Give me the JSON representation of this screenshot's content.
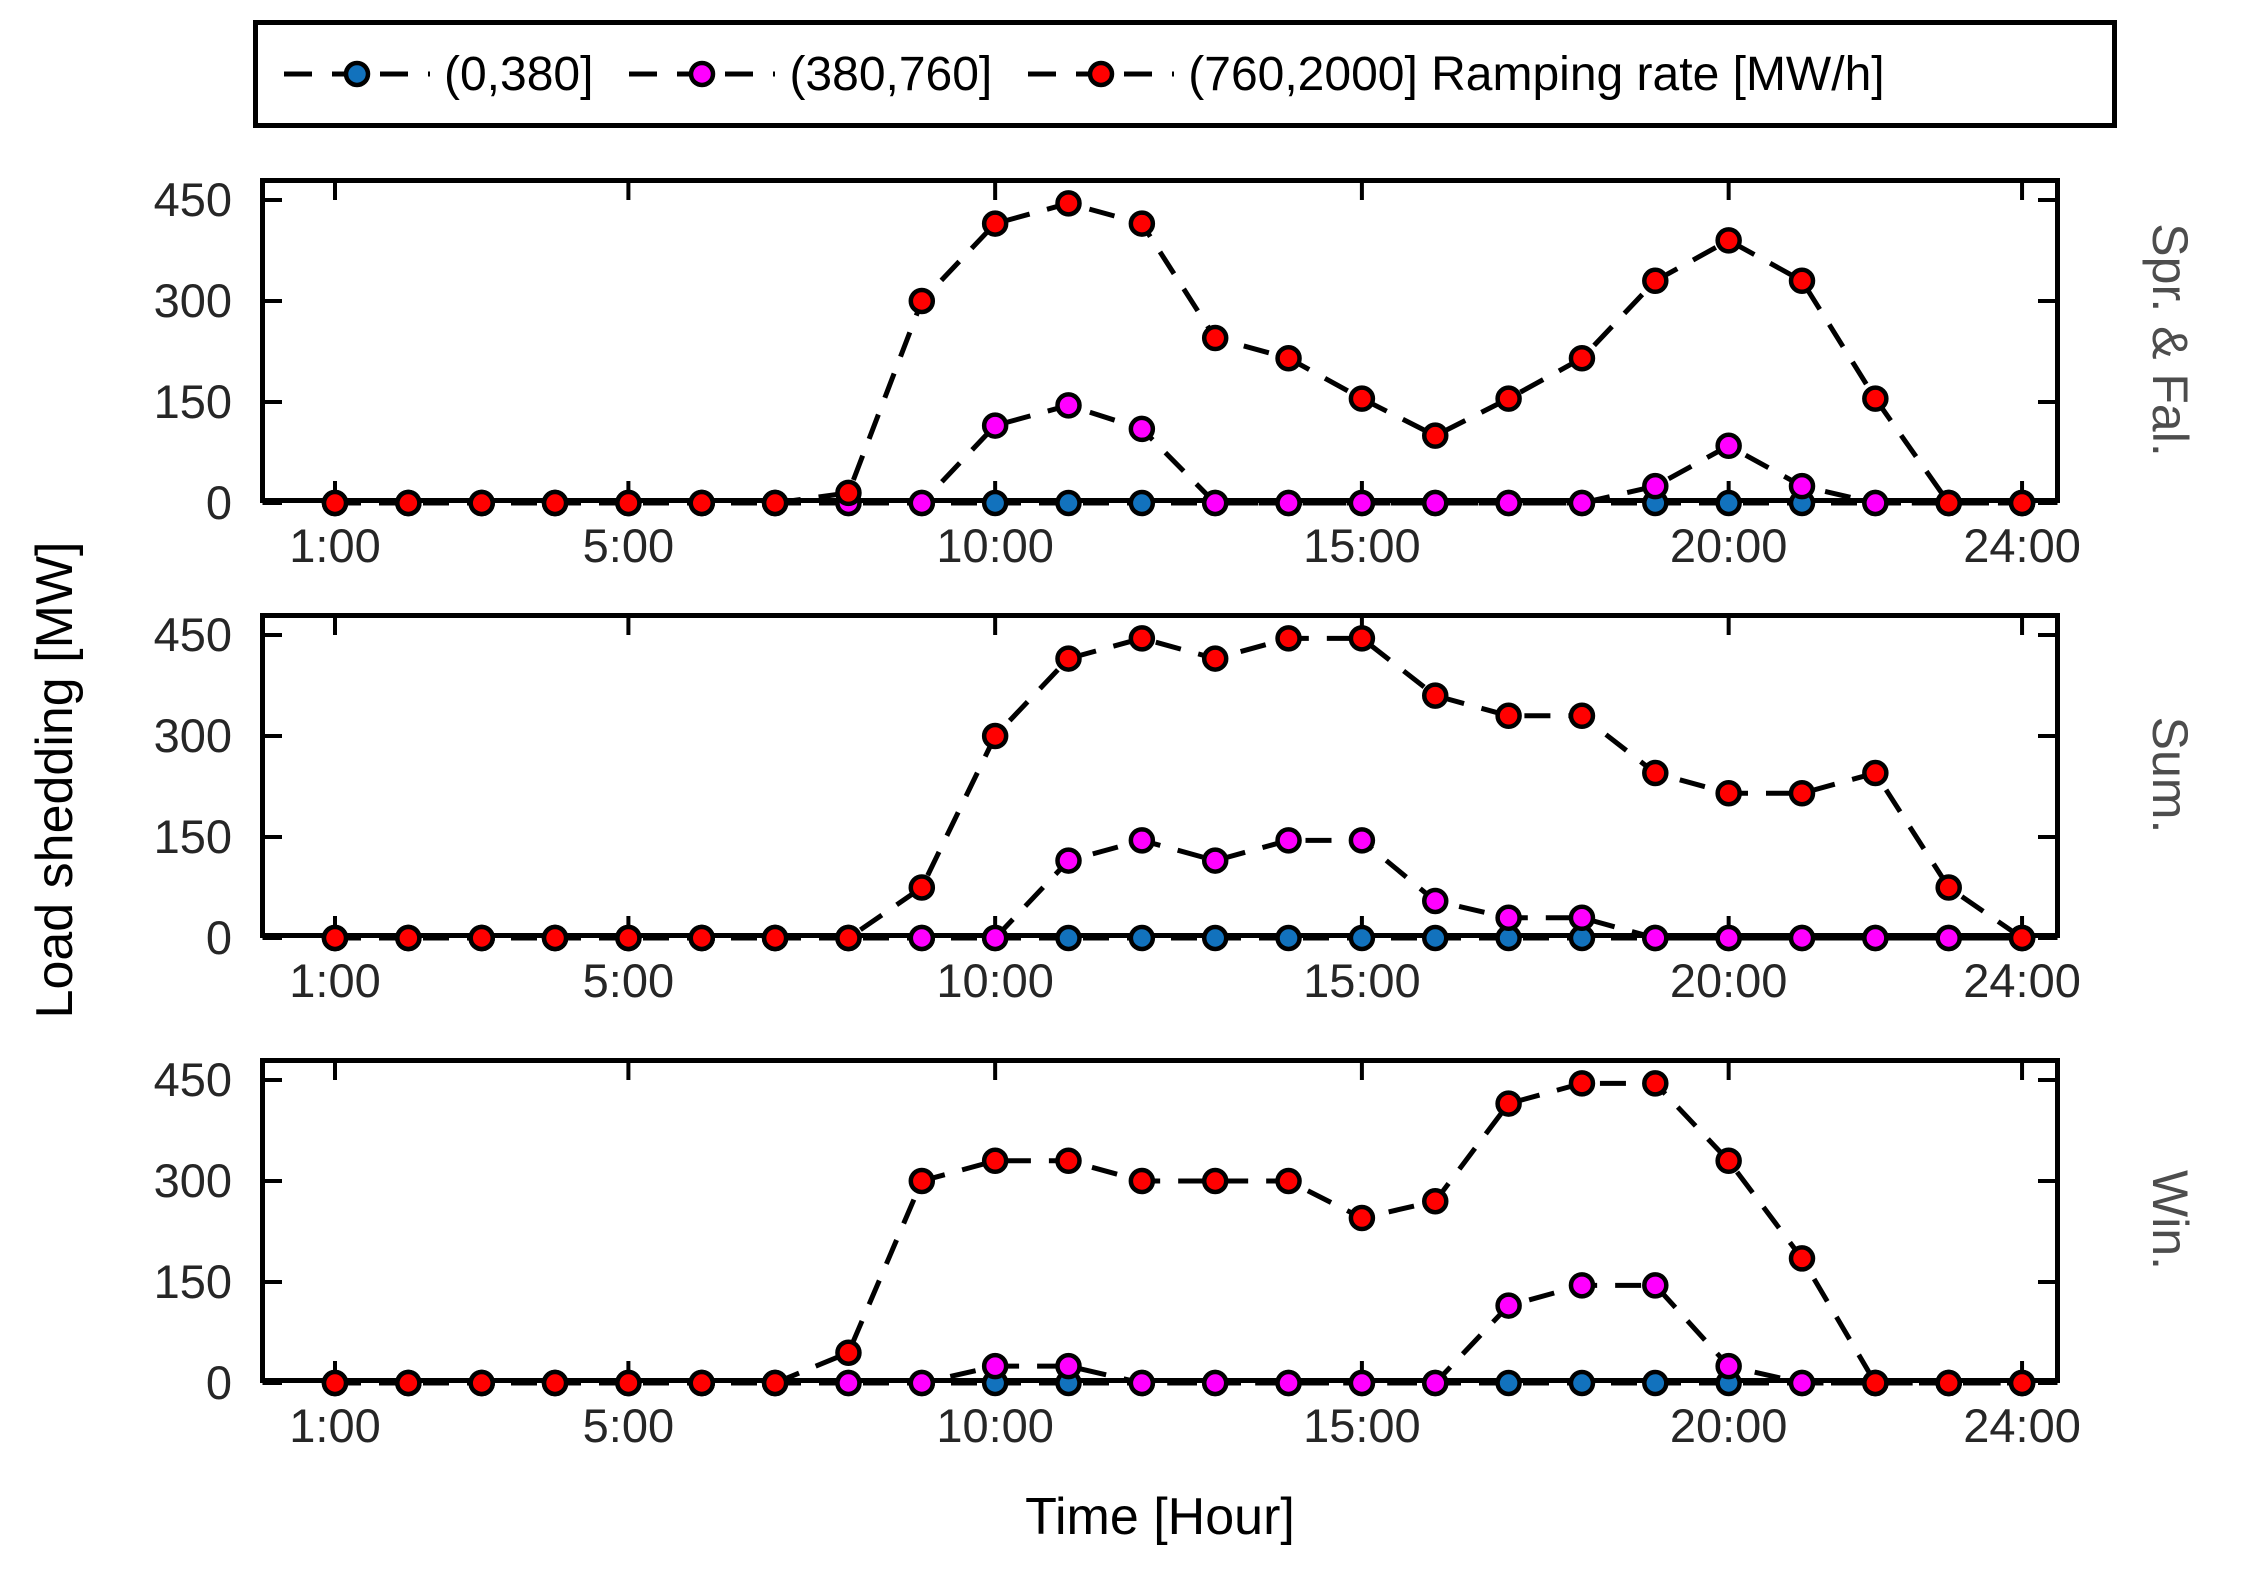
{
  "legend": {
    "items": [
      {
        "label": "(0,380]",
        "color": "#1272bd"
      },
      {
        "label": "(380,760]",
        "color": "#ff00ff"
      },
      {
        "label": "(760,2000] Ramping rate [MW/h]",
        "color": "#ff0000"
      }
    ]
  },
  "chart_data": {
    "type": "line",
    "line_style": "dashed",
    "marker": "circle",
    "grid": false,
    "legend_position": "top",
    "xlabel": "Time [Hour]",
    "ylabel": "Load shedding [MW]",
    "x": [
      1,
      2,
      3,
      4,
      5,
      6,
      7,
      8,
      9,
      10,
      11,
      12,
      13,
      14,
      15,
      16,
      17,
      18,
      19,
      20,
      21,
      22,
      23,
      24
    ],
    "xtick_hours": [
      1,
      5,
      10,
      15,
      20,
      24
    ],
    "xtick_labels": [
      "1:00",
      "5:00",
      "10:00",
      "15:00",
      "20:00",
      "24:00"
    ],
    "yticks": [
      0,
      150,
      300,
      450
    ],
    "ylim": [
      0,
      483
    ],
    "subplots": [
      {
        "title": "Spr. & Fal.",
        "series": [
          {
            "name": "(0,380]",
            "color": "#1272bd",
            "values": [
              0,
              0,
              0,
              0,
              0,
              0,
              0,
              0,
              0,
              0,
              0,
              0,
              0,
              0,
              0,
              0,
              0,
              0,
              0,
              0,
              0,
              0,
              0,
              0
            ]
          },
          {
            "name": "(380,760]",
            "color": "#ff00ff",
            "values": [
              0,
              0,
              0,
              0,
              0,
              0,
              0,
              0,
              0,
              115,
              145,
              110,
              0,
              0,
              0,
              0,
              0,
              0,
              25,
              85,
              25,
              0,
              0,
              0
            ]
          },
          {
            "name": "(760,2000]",
            "color": "#ff0000",
            "values": [
              0,
              0,
              0,
              0,
              0,
              0,
              0,
              15,
              300,
              415,
              445,
              415,
              245,
              215,
              155,
              100,
              155,
              215,
              330,
              390,
              330,
              155,
              0,
              0
            ]
          }
        ]
      },
      {
        "title": "Sum.",
        "series": [
          {
            "name": "(0,380]",
            "color": "#1272bd",
            "values": [
              0,
              0,
              0,
              0,
              0,
              0,
              0,
              0,
              0,
              0,
              0,
              0,
              0,
              0,
              0,
              0,
              0,
              0,
              0,
              0,
              0,
              0,
              0,
              0
            ]
          },
          {
            "name": "(380,760]",
            "color": "#ff00ff",
            "values": [
              0,
              0,
              0,
              0,
              0,
              0,
              0,
              0,
              0,
              0,
              115,
              145,
              115,
              145,
              145,
              55,
              30,
              30,
              0,
              0,
              0,
              0,
              0,
              0
            ]
          },
          {
            "name": "(760,2000]",
            "color": "#ff0000",
            "values": [
              0,
              0,
              0,
              0,
              0,
              0,
              0,
              0,
              75,
              300,
              415,
              445,
              415,
              445,
              445,
              360,
              330,
              330,
              245,
              215,
              215,
              245,
              75,
              0
            ]
          }
        ]
      },
      {
        "title": "Win.",
        "series": [
          {
            "name": "(0,380]",
            "color": "#1272bd",
            "values": [
              0,
              0,
              0,
              0,
              0,
              0,
              0,
              0,
              0,
              0,
              0,
              0,
              0,
              0,
              0,
              0,
              0,
              0,
              0,
              0,
              0,
              0,
              0,
              0
            ]
          },
          {
            "name": "(380,760]",
            "color": "#ff00ff",
            "values": [
              0,
              0,
              0,
              0,
              0,
              0,
              0,
              0,
              0,
              25,
              25,
              0,
              0,
              0,
              0,
              0,
              115,
              145,
              145,
              25,
              0,
              0,
              0,
              0
            ]
          },
          {
            "name": "(760,2000]",
            "color": "#ff0000",
            "values": [
              0,
              0,
              0,
              0,
              0,
              0,
              0,
              45,
              300,
              330,
              330,
              300,
              300,
              300,
              245,
              270,
              415,
              445,
              445,
              330,
              185,
              0,
              0,
              0
            ]
          }
        ]
      }
    ]
  }
}
